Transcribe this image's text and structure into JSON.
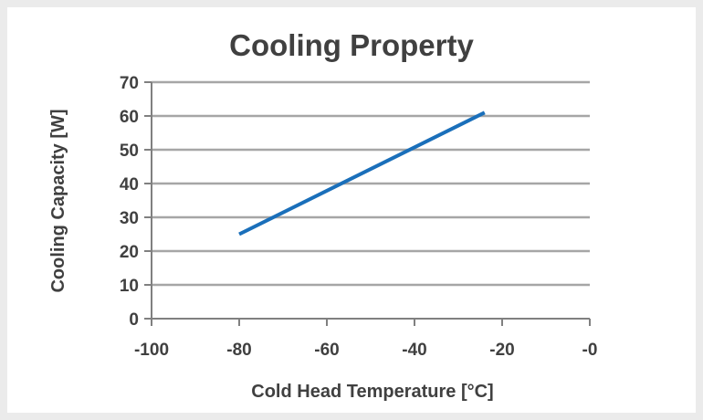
{
  "chart_data": {
    "type": "line",
    "title": "Cooling Property",
    "xlabel": "Cold Head Temperature [°C]",
    "ylabel": "Cooling Capacity [W]",
    "xlim": [
      -100,
      0
    ],
    "ylim": [
      0,
      70
    ],
    "x_ticks": [
      "-100",
      "-80",
      "-60",
      "-40",
      "-20",
      "-0"
    ],
    "x_tick_values": [
      -100,
      -80,
      -60,
      -40,
      -20,
      0
    ],
    "y_ticks": [
      "0",
      "10",
      "20",
      "30",
      "40",
      "50",
      "60",
      "70"
    ],
    "y_tick_values": [
      0,
      10,
      20,
      30,
      40,
      50,
      60,
      70
    ],
    "grid": "horizontal",
    "legend": "none",
    "series": [
      {
        "color": "#1a6fba",
        "x": [
          -80,
          -24
        ],
        "y": [
          25,
          61
        ]
      }
    ]
  }
}
